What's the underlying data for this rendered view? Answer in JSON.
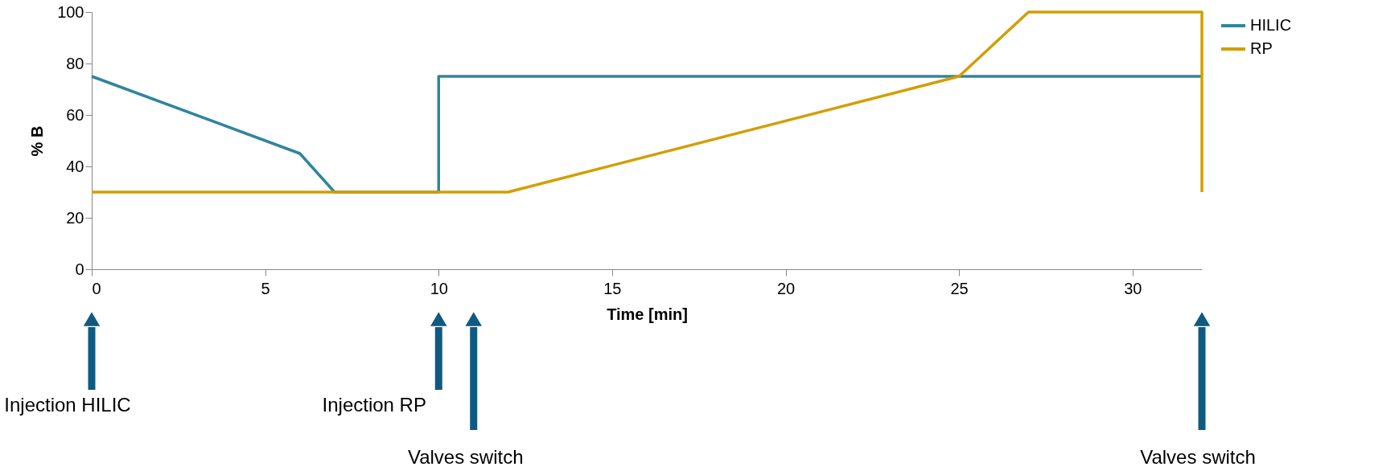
{
  "chart_data": {
    "type": "line",
    "xlabel": "Time [min]",
    "ylabel": "% B",
    "x": [
      0,
      6,
      7,
      10,
      10,
      32
    ],
    "series": [
      {
        "name": "HILIC",
        "color": "#31859c",
        "values": [
          75,
          45,
          30,
          30,
          75,
          75
        ]
      },
      {
        "name": "RP",
        "color": "#d39e00",
        "x": [
          0,
          12,
          25,
          27,
          32,
          32
        ],
        "values": [
          30,
          30,
          75,
          100,
          100,
          30
        ]
      }
    ],
    "xlim": [
      0,
      32
    ],
    "xticks": [
      0,
      5,
      10,
      15,
      20,
      25,
      30
    ],
    "ylim": [
      0,
      100
    ],
    "yticks": [
      0,
      20,
      40,
      60,
      80,
      100
    ],
    "grid": false,
    "legend": "right",
    "marker": "none",
    "line_style": "solid",
    "annotations": [
      "Injection HILIC",
      "Injection RP",
      "Valves switch",
      "Valves switch"
    ]
  }
}
